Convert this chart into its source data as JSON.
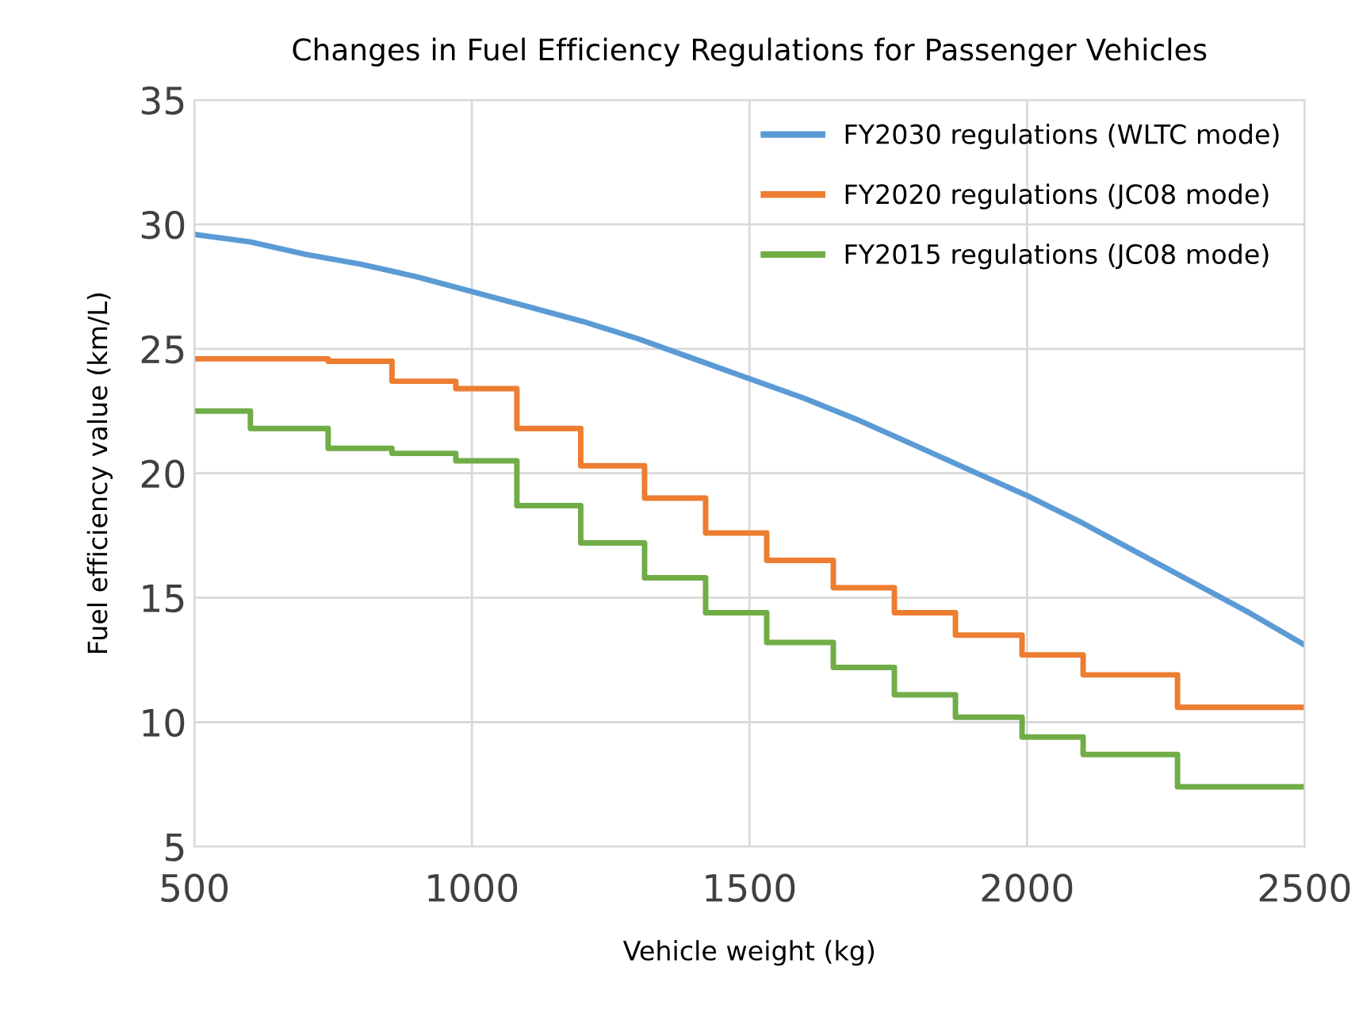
{
  "chart_data": {
    "type": "line",
    "title": "Changes in Fuel Efficiency Regulations for Passenger Vehicles",
    "xlabel": "Vehicle weight (kg)",
    "ylabel": "Fuel efficiency value (km/L)",
    "series": [
      {
        "name": "FY2030 regulations (WLTC mode)",
        "color": "#5b9bd5",
        "x": [
          500,
          600,
          700,
          800,
          900,
          1000,
          1100,
          1200,
          1300,
          1400,
          1500,
          1600,
          1700,
          1800,
          1900,
          2000,
          2100,
          2200,
          2300,
          2400,
          2500
        ],
        "values": [
          29.6,
          29.3,
          28.8,
          28.4,
          27.9,
          27.3,
          26.7,
          26.1,
          25.4,
          24.6,
          23.8,
          23.0,
          22.1,
          21.1,
          20.1,
          19.1,
          18.0,
          16.8,
          15.6,
          14.4,
          13.1
        ]
      },
      {
        "name": "FY2020 regulations (JC08 mode)",
        "color": "#ed7d31",
        "type": "step",
        "x": [
          500,
          741,
          856,
          971,
          1081,
          1196,
          1311,
          1421,
          1531,
          1651,
          1761,
          1871,
          1991,
          2101,
          2271,
          2500
        ],
        "values": [
          24.6,
          24.5,
          23.7,
          23.4,
          21.8,
          20.3,
          19.0,
          17.6,
          16.5,
          15.4,
          14.4,
          13.5,
          12.7,
          11.9,
          10.6,
          10.6
        ]
      },
      {
        "name": "FY2015 regulations (JC08 mode)",
        "color": "#70ad47",
        "type": "step",
        "x": [
          500,
          601,
          741,
          856,
          971,
          1081,
          1196,
          1311,
          1421,
          1531,
          1651,
          1761,
          1871,
          1991,
          2101,
          2271,
          2500
        ],
        "values": [
          22.5,
          21.8,
          21.0,
          20.8,
          20.5,
          18.7,
          17.2,
          15.8,
          14.4,
          13.2,
          12.2,
          11.1,
          10.2,
          9.4,
          8.7,
          7.4,
          7.4
        ]
      }
    ],
    "xlim": [
      500,
      2500
    ],
    "xticks": [
      500,
      1000,
      1500,
      2000,
      2500
    ],
    "ylim": [
      5,
      35
    ],
    "yticks": [
      5,
      10,
      15,
      20,
      25,
      30,
      35
    ],
    "grid": true,
    "legend": "top right",
    "marker": "none",
    "line_style": "solid"
  }
}
